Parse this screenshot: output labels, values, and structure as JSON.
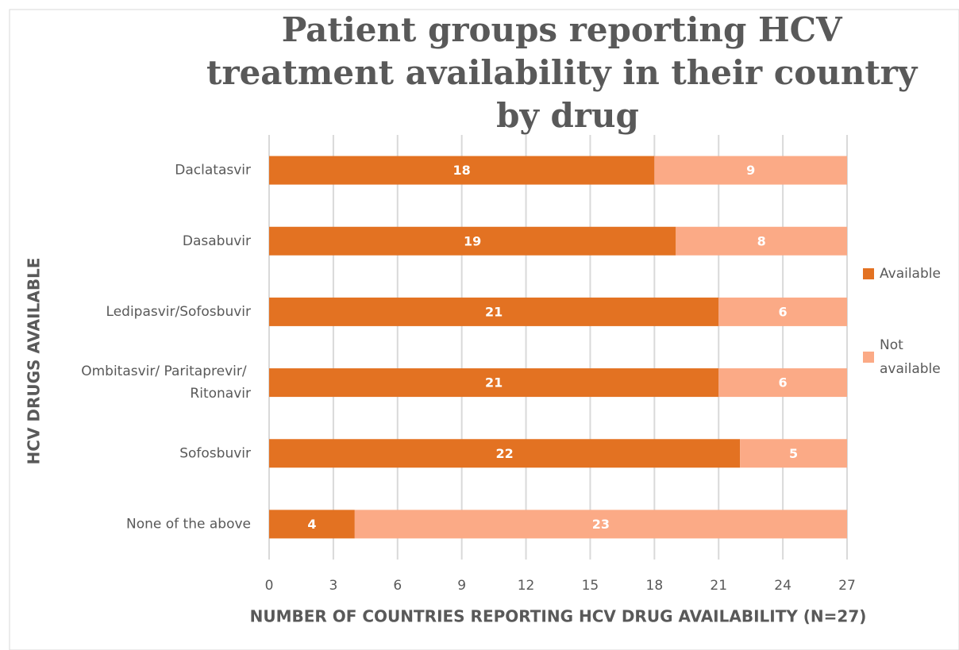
{
  "chart_data": {
    "type": "stacked_barh",
    "title": "Patient groups reporting HCV treatment availability in their country by drug",
    "xlabel": "NUMBER OF COUNTRIES REPORTING HCV DRUG AVAILABILITY (N=27)",
    "ylabel": "HCV DRUGS AVAILABLE",
    "categories": [
      "Daclatasvir",
      "Dasabuvir",
      "Ledipasvir/Sofosbuvir",
      "Ombitasvir/ Paritaprevir/ Ritonavir",
      "Sofosbuvir",
      "None of the above"
    ],
    "series": [
      {
        "name": "Available",
        "color": "#e37222",
        "values": [
          18,
          19,
          21,
          21,
          22,
          4
        ]
      },
      {
        "name": "Not available",
        "color": "#fbaa86",
        "values": [
          9,
          8,
          6,
          6,
          5,
          23
        ]
      }
    ],
    "xlim": [
      0,
      27
    ],
    "xticks": [
      0,
      3,
      6,
      9,
      12,
      15,
      18,
      21,
      24,
      27
    ],
    "grid": true,
    "legend": "right"
  }
}
